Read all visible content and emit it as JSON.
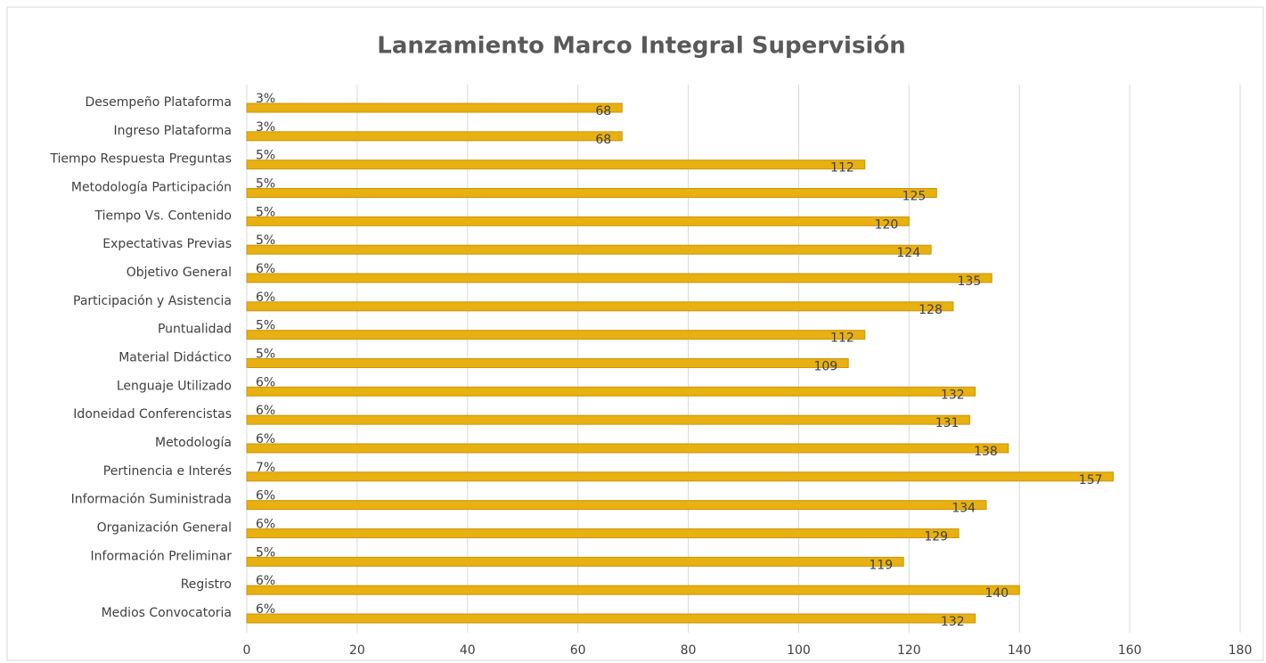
{
  "chart_data": {
    "type": "barh",
    "title": "Lanzamiento Marco Integral Supervisión",
    "categories": [
      "Desempeño Plataforma",
      "Ingreso Plataforma",
      "Tiempo Respuesta Preguntas",
      "Metodología Participación",
      "Tiempo Vs. Contenido",
      "Expectativas Previas",
      "Objetivo General",
      "Participación y Asistencia",
      "Puntualidad",
      "Material Didáctico",
      "Lenguaje Utilizado",
      "Idoneidad Conferencistas",
      "Metodología",
      "Pertinencia e Interés",
      "Información Suministrada",
      "Organización General",
      "Información Preliminar",
      "Registro",
      "Medios Convocatoria"
    ],
    "values": [
      68,
      68,
      112,
      125,
      120,
      124,
      135,
      128,
      112,
      109,
      132,
      131,
      138,
      157,
      134,
      129,
      119,
      140,
      132
    ],
    "share_labels": [
      "3%",
      "3%",
      "5%",
      "5%",
      "5%",
      "5%",
      "6%",
      "6%",
      "5%",
      "5%",
      "6%",
      "6%",
      "6%",
      "7%",
      "6%",
      "6%",
      "5%",
      "6%",
      "6%"
    ],
    "color": "#e8b010",
    "xlim": [
      0,
      180
    ],
    "xticks": [
      0,
      20,
      40,
      60,
      80,
      100,
      120,
      140,
      160,
      180
    ],
    "grid": true
  }
}
